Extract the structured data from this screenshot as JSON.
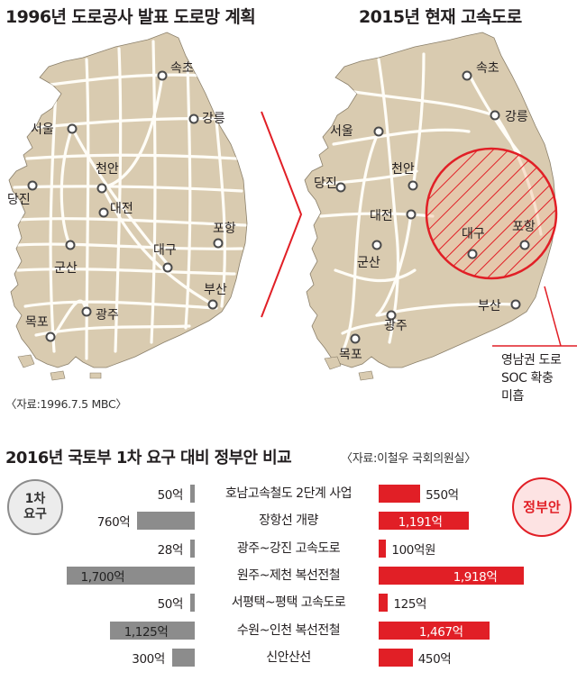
{
  "left_map": {
    "title": "1996년 도로공사 발표 도로망 계획",
    "source": "〈자료:1996.7.5 MBC〉",
    "cities": [
      "속초",
      "강릉",
      "서울",
      "천안",
      "당진",
      "대전",
      "포항",
      "대구",
      "군산",
      "부산",
      "목포",
      "광주"
    ]
  },
  "right_map": {
    "title": "2015년 현재 고속도로",
    "cities": [
      "속초",
      "강릉",
      "서울",
      "천안",
      "당진",
      "대전",
      "대구",
      "포항",
      "군산",
      "부산",
      "광주",
      "목포"
    ],
    "annotation": [
      "영남권 도로",
      "SOC 확충",
      "미흡"
    ]
  },
  "comparison": {
    "title": "2016년 국토부 1차 요구 대비 정부안 비교",
    "source": "〈자료:이철우 국회의원실〉",
    "left_badge": [
      "1차",
      "요구"
    ],
    "right_badge": "정부안",
    "colors": {
      "request": "#8c8c8c",
      "government": "#e11f26",
      "map_land": "#d9cbb0"
    },
    "unit": "억원",
    "rows": [
      {
        "name": "호남고속철도 2단계 사업",
        "request": 50,
        "request_label": "50억",
        "gov": 550,
        "gov_label": "550억"
      },
      {
        "name": "장항선 개량",
        "request": 760,
        "request_label": "760억",
        "gov": 1191,
        "gov_label": "1,191억"
      },
      {
        "name": "광주~강진 고속도로",
        "request": 28,
        "request_label": "28억",
        "gov": 100,
        "gov_label": "100억원"
      },
      {
        "name": "원주~제천 복선전철",
        "request": 1700,
        "request_label": "1,700억",
        "gov": 1918,
        "gov_label": "1,918억"
      },
      {
        "name": "서평택~평택 고속도로",
        "request": 50,
        "request_label": "50억",
        "gov": 125,
        "gov_label": "125억"
      },
      {
        "name": "수원~인천 복선전철",
        "request": 1125,
        "request_label": "1,125억",
        "gov": 1467,
        "gov_label": "1,467억"
      },
      {
        "name": "신안산선",
        "request": 300,
        "request_label": "300억",
        "gov": 450,
        "gov_label": "450억"
      }
    ]
  }
}
